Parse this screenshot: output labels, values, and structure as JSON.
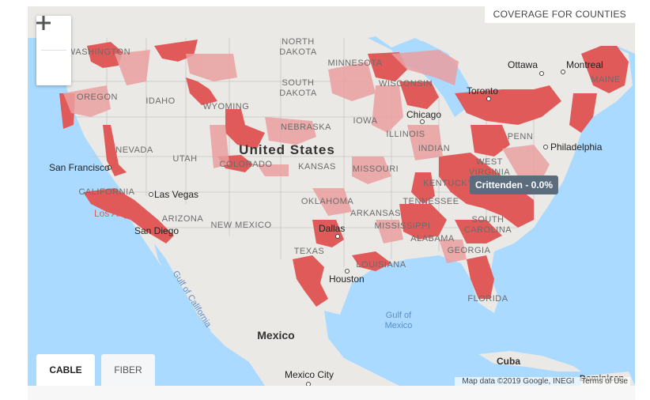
{
  "coverage_label": "COVERAGE FOR COUNTIES",
  "zoom": {
    "in_label": "+",
    "out_label": "−"
  },
  "tabs": [
    {
      "label": "CABLE",
      "active": true
    },
    {
      "label": "FIBER",
      "active": false
    }
  ],
  "tooltip": "Crittenden - 0.0%",
  "attribution": {
    "map_data": "Map data ©2019 Google, INEGI",
    "terms": "Terms of Use"
  },
  "colors": {
    "water": "#aadaff",
    "land": "#ebe9e6",
    "coverage": "#e05a5a",
    "coverage_light": "#eaa0a0"
  },
  "map_labels": {
    "united_states": "United States",
    "mexico": "Mexico",
    "cuba": "Cuba",
    "dominican": "Dominican",
    "gulf_of_mexico": "Gulf of\nMexico",
    "gulf_of_california": "Gulf of California",
    "states": {
      "washington": "WASHINGTON",
      "oregon": "OREGON",
      "idaho": "IDAHO",
      "nevada": "NEVADA",
      "california": "CALIFORNIA",
      "utah": "UTAH",
      "arizona": "ARIZONA",
      "wyoming": "WYOMING",
      "colorado": "COLORADO",
      "new_mexico": "NEW MEXICO",
      "north_dakota": "NORTH\nDAKOTA",
      "south_dakota": "SOUTH\nDAKOTA",
      "nebraska": "NEBRASKA",
      "kansas": "KANSAS",
      "oklahoma": "OKLAHOMA",
      "texas": "TEXAS",
      "minnesota": "MINNESOTA",
      "iowa": "IOWA",
      "missouri": "MISSOURI",
      "arkansas": "ARKANSAS",
      "louisiana": "LOUISIANA",
      "wisconsin": "WISCONSIN",
      "illinois": "ILLINOIS",
      "indiana": "INDIAN",
      "kentucky": "KENTUCKY",
      "tennessee": "TENNESSEE",
      "mississippi": "MISSISSIPPI",
      "alabama": "ALABAMA",
      "georgia": "GEORGIA",
      "florida": "FLORIDA",
      "south_carolina": "SOUTH\nCAROLINA",
      "west_virginia": "WEST\nVIRGINIA",
      "penn": "PENN",
      "maine": "MAINE"
    },
    "cities": {
      "san_francisco": "San Francisco",
      "las_vegas": "Las Vegas",
      "los_angeles": "Los Angeles",
      "san_diego": "San Diego",
      "dallas": "Dallas",
      "houston": "Houston",
      "chicago": "Chicago",
      "toronto": "Toronto",
      "ottawa": "Ottawa",
      "montreal": "Montreal",
      "philadelphia": "Philadelphia",
      "mexico_city": "Mexico City"
    }
  }
}
